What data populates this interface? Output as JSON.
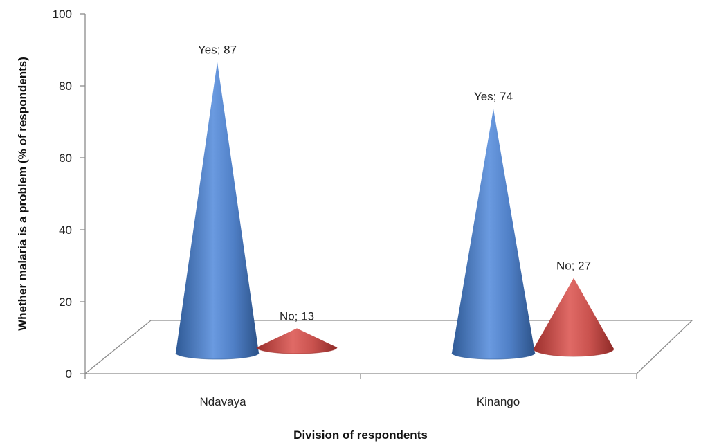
{
  "chart_data": {
    "type": "bar",
    "style": "3d-cone",
    "categories": [
      "Ndavaya",
      "Kinango"
    ],
    "series": [
      {
        "name": "Yes",
        "values": [
          87,
          74
        ],
        "color": "#4f81bd"
      },
      {
        "name": "No",
        "values": [
          13,
          27
        ],
        "color": "#c0504d"
      }
    ],
    "data_labels": [
      [
        "Yes; 87",
        "Yes; 74"
      ],
      [
        "No; 13",
        "No; 27"
      ]
    ],
    "xlabel": "Division of respondents",
    "ylabel": "Whether malaria is a problem (% of respondents)",
    "ylim": [
      0,
      100
    ],
    "yticks": [
      "0",
      "20",
      "40",
      "60",
      "80",
      "100"
    ],
    "grid": false,
    "legend": "none"
  }
}
